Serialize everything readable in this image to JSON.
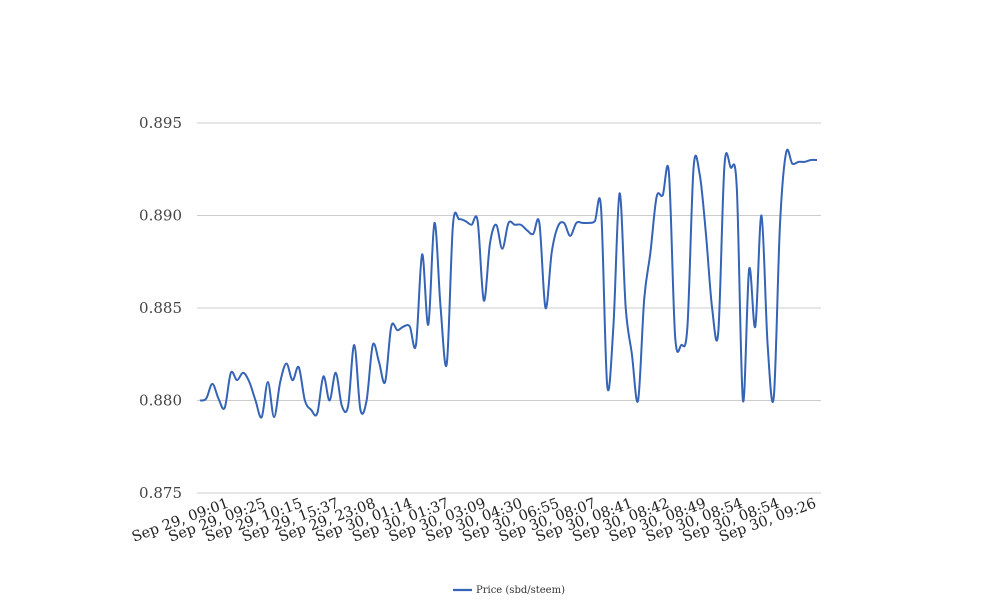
{
  "chart_data": {
    "type": "line",
    "title": "",
    "xlabel": "",
    "ylabel": "",
    "ylim": [
      0.875,
      0.895
    ],
    "y_ticks": [
      "0.875",
      "0.880",
      "0.885",
      "0.890",
      "0.895"
    ],
    "x_tick_labels": [
      "Sep 29, 09:01",
      "Sep 29, 09:25",
      "Sep 29, 10:15",
      "Sep 29, 15:37",
      "Sep 29, 23:08",
      "Sep 30, 01:14",
      "Sep 30, 01:37",
      "Sep 30, 03:09",
      "Sep 30, 04:30",
      "Sep 30, 06:55",
      "Sep 30, 08:07",
      "Sep 30, 08:41",
      "Sep 30, 08:42",
      "Sep 30, 08:49",
      "Sep 30, 08:54",
      "Sep 30, 08:54",
      "Sep 30, 09:26"
    ],
    "grid": true,
    "legend_position": "bottom-center",
    "series": [
      {
        "name": "Price (sbd/steem)",
        "color": "#3563b5",
        "values": [
          0.88,
          0.8801,
          0.8809,
          0.8801,
          0.8796,
          0.8815,
          0.8811,
          0.8815,
          0.881,
          0.88,
          0.8791,
          0.881,
          0.8791,
          0.881,
          0.882,
          0.8811,
          0.8818,
          0.88,
          0.8795,
          0.8793,
          0.8813,
          0.88,
          0.8815,
          0.8797,
          0.8797,
          0.883,
          0.8795,
          0.88,
          0.883,
          0.8821,
          0.881,
          0.884,
          0.8838,
          0.884,
          0.884,
          0.883,
          0.8879,
          0.8841,
          0.8896,
          0.885,
          0.882,
          0.8895,
          0.8898,
          0.8897,
          0.8895,
          0.8897,
          0.8854,
          0.8885,
          0.8895,
          0.8882,
          0.8896,
          0.8895,
          0.8895,
          0.8892,
          0.889,
          0.8896,
          0.885,
          0.888,
          0.8894,
          0.8896,
          0.8889,
          0.8896,
          0.8896,
          0.8896,
          0.8897,
          0.8904,
          0.8808,
          0.884,
          0.8912,
          0.885,
          0.8825,
          0.88,
          0.8855,
          0.888,
          0.891,
          0.8911,
          0.8923,
          0.8835,
          0.883,
          0.884,
          0.8926,
          0.8922,
          0.889,
          0.885,
          0.8837,
          0.8927,
          0.8926,
          0.8915,
          0.88,
          0.8871,
          0.884,
          0.89,
          0.883,
          0.8802,
          0.8895,
          0.8934,
          0.8928,
          0.8929,
          0.8929,
          0.893,
          0.893
        ]
      }
    ]
  }
}
